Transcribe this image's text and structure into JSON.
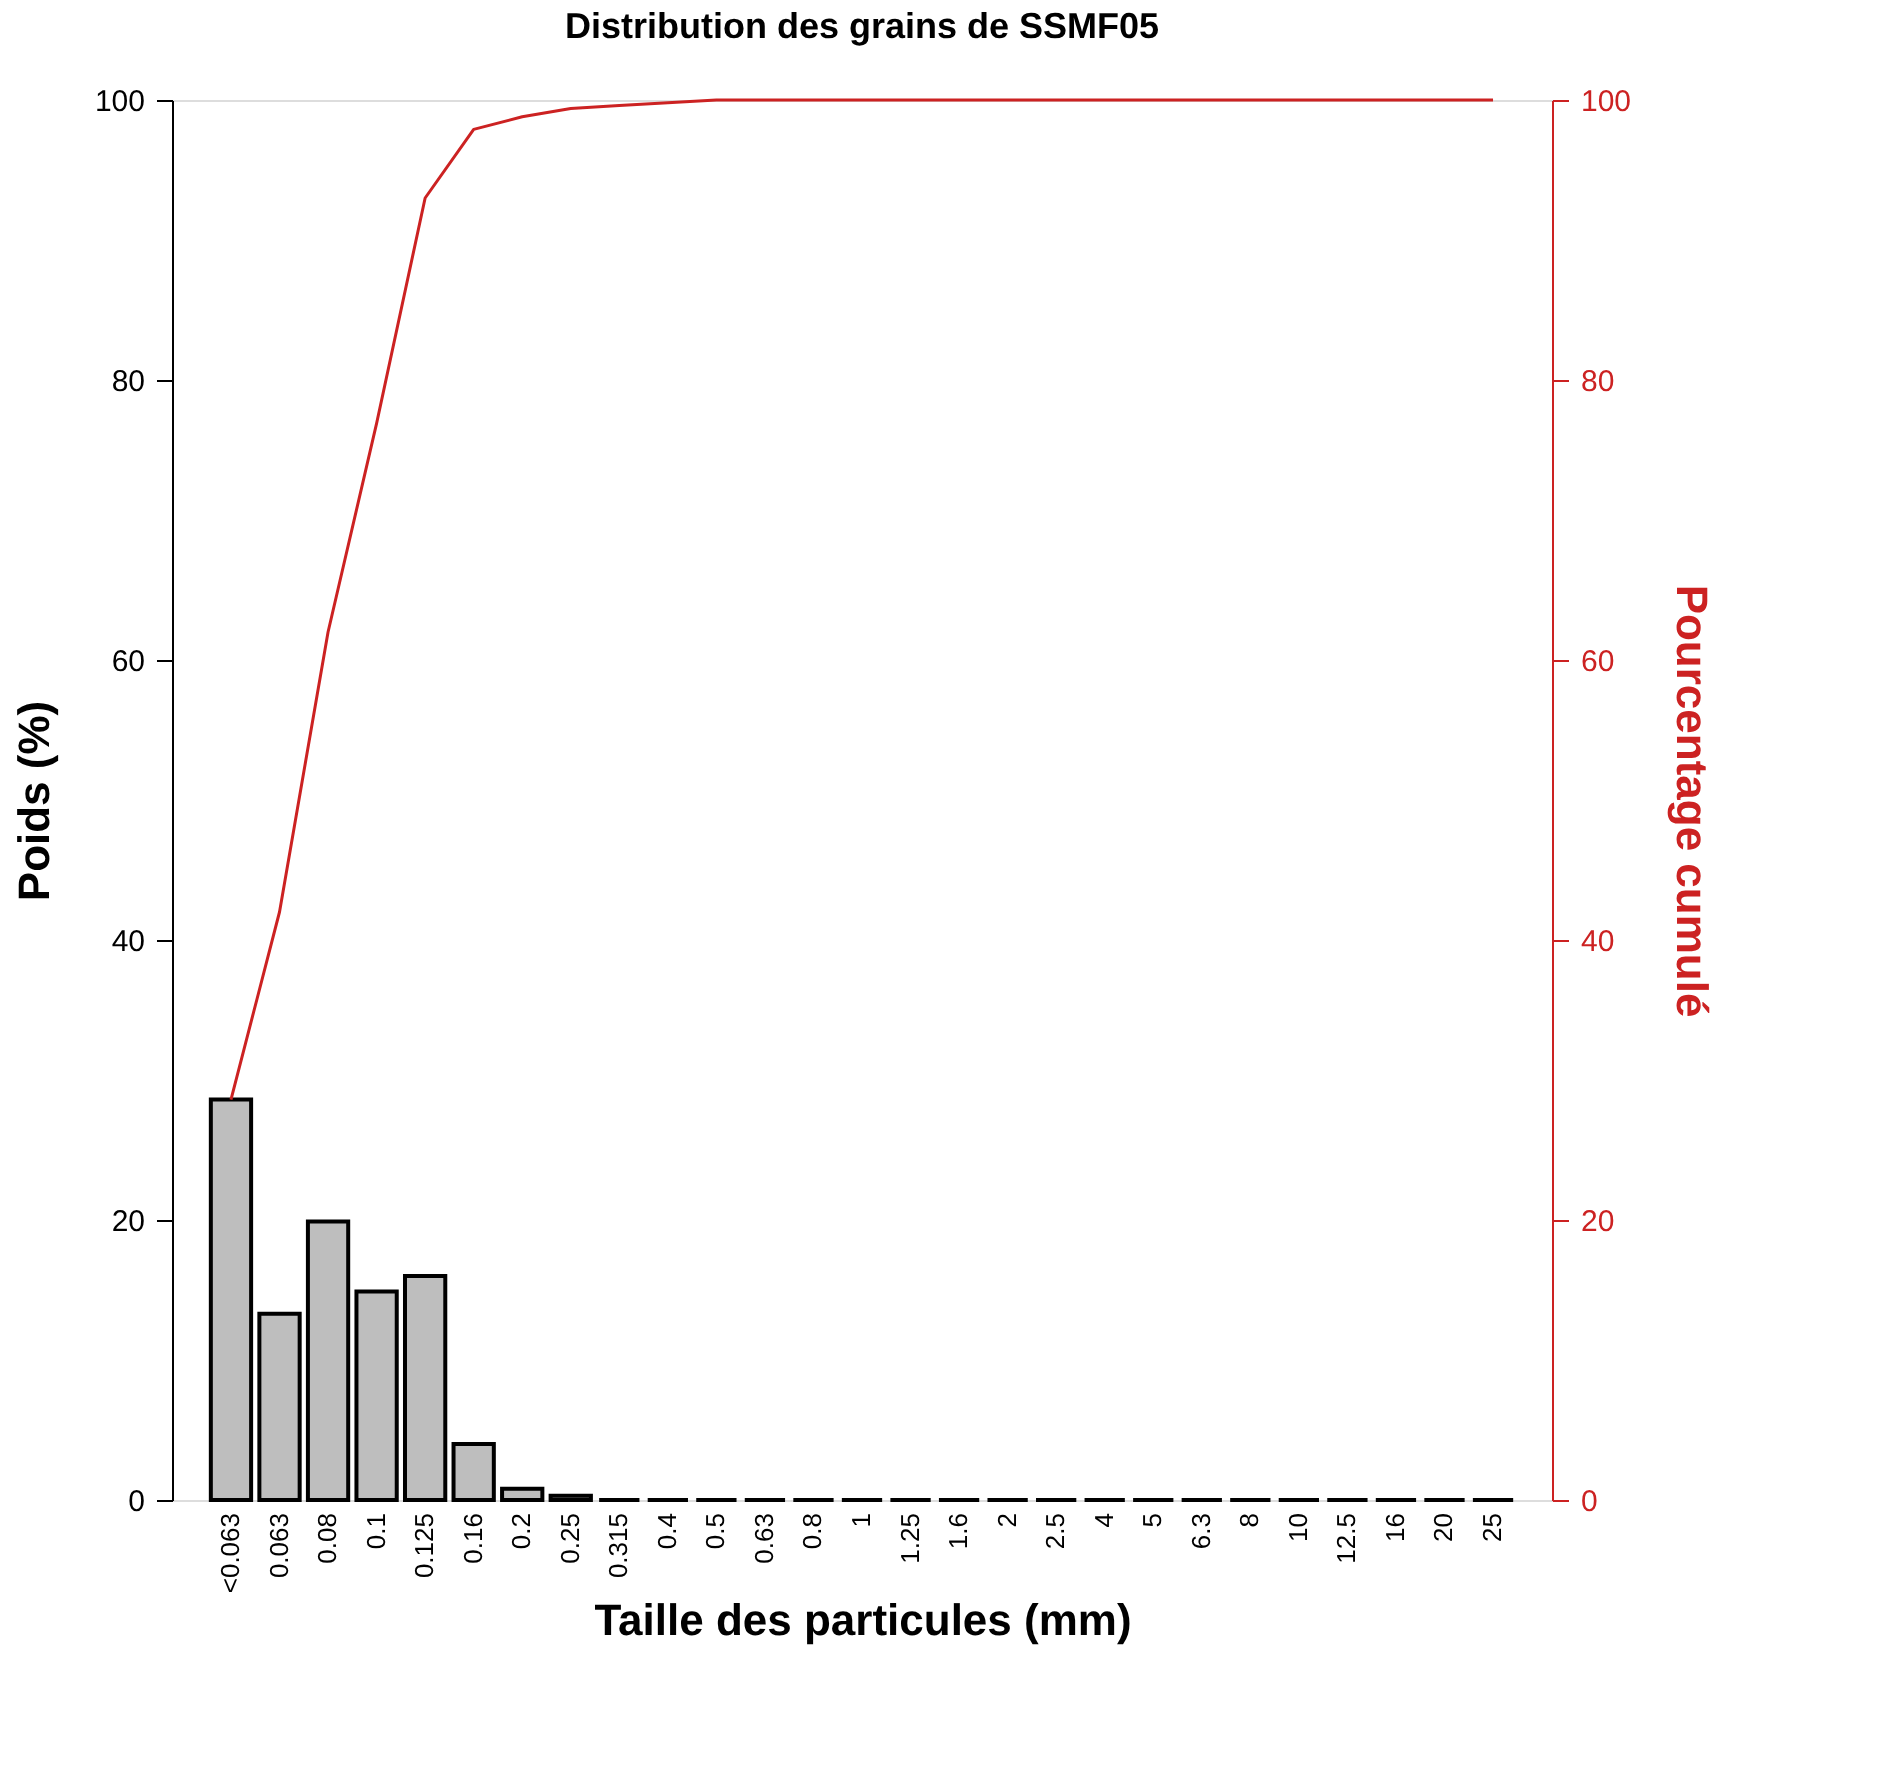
{
  "chart_data": {
    "type": "bar",
    "title": "Distribution des grains de SSMF05",
    "xlabel": "Taille des particules (mm)",
    "ylabel": "Poids (%)",
    "y2label": "Pourcentage cumulé",
    "categories": [
      "<0.063",
      "0.063",
      "0.08",
      "0.1",
      "0.125",
      "0.16",
      "0.2",
      "0.25",
      "0.315",
      "0.4",
      "0.5",
      "0.63",
      "0.8",
      "1",
      "1.25",
      "1.6",
      "2",
      "2.5",
      "4",
      "5",
      "6.3",
      "8",
      "10",
      "12.5",
      "16",
      "20",
      "25"
    ],
    "series": [
      {
        "color": "#bebebe",
        "values": [
          28.6,
          13.3,
          19.9,
          14.9,
          16.0,
          4.0,
          0.8,
          0.3,
          0,
          0,
          0,
          0,
          0,
          0,
          0,
          0,
          0,
          0,
          0,
          0,
          0,
          0,
          0,
          0,
          0,
          0,
          0
        ]
      },
      {
        "type": "line",
        "axis": "y2",
        "color": "#cc2222",
        "values": [
          28.6,
          42.0,
          62.0,
          76.9,
          93.0,
          97.9,
          98.8,
          99.4,
          99.6,
          99.8,
          100,
          100,
          100,
          100,
          100,
          100,
          100,
          100,
          100,
          100,
          100,
          100,
          100,
          100,
          100,
          100,
          100
        ]
      }
    ],
    "ylim": [
      0,
      100
    ],
    "yticks": [
      0,
      20,
      40,
      60,
      80,
      100
    ],
    "y2lim": [
      0,
      100
    ],
    "y2ticks": [
      0,
      20,
      40,
      60,
      80,
      100
    ]
  }
}
